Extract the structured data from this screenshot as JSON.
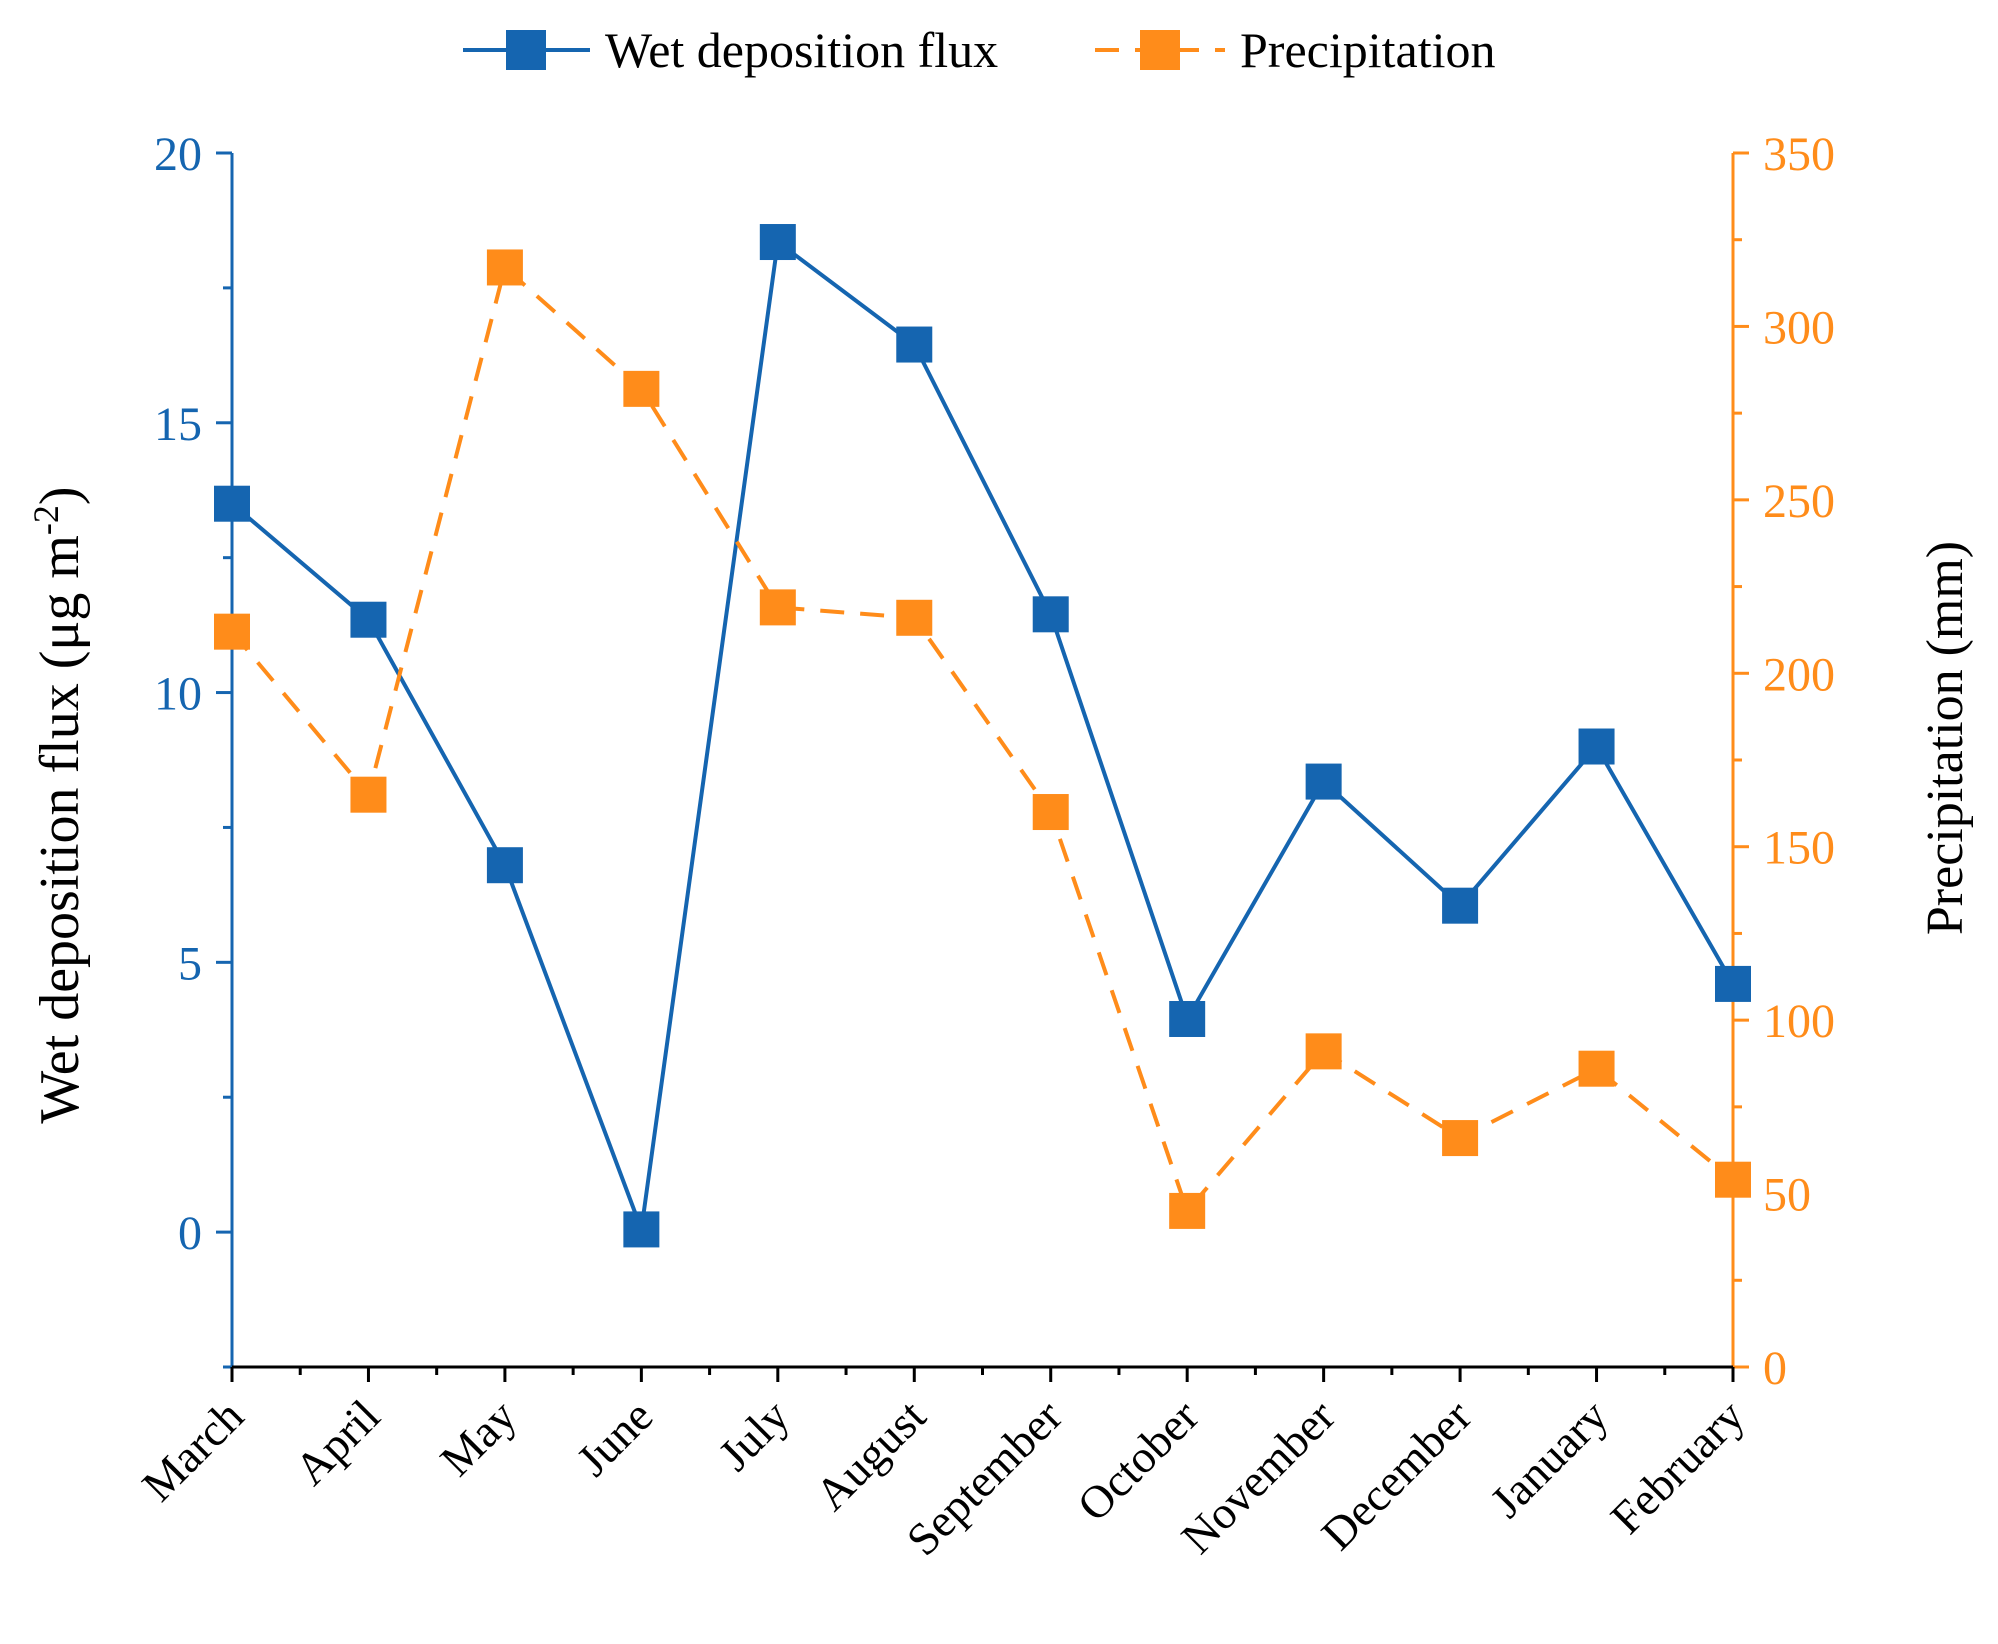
{
  "chart_data": {
    "type": "line",
    "categories": [
      "March",
      "April",
      "May",
      "June",
      "July",
      "August",
      "September",
      "October",
      "November",
      "December",
      "January",
      "February"
    ],
    "series": [
      {
        "name": "Wet deposition flux",
        "axis": "left",
        "color": "#1565b0",
        "line_style": "solid",
        "marker": "square",
        "values": [
          13.5,
          11.35,
          6.8,
          0.05,
          18.35,
          16.45,
          11.45,
          3.95,
          8.35,
          6.05,
          9.0,
          4.6
        ]
      },
      {
        "name": "Precipitation",
        "axis": "right",
        "color": "#ff8c1a",
        "line_style": "dashed",
        "marker": "square",
        "values": [
          212,
          165,
          317,
          282,
          219,
          216,
          160,
          45,
          91,
          66,
          86,
          54
        ]
      }
    ],
    "y_left": {
      "label_main": "Wet deposition flux (μg m",
      "label_sup": "-2",
      "label_close": ")",
      "range": [
        -2.5,
        20
      ],
      "major_ticks": [
        0,
        5,
        10,
        15,
        20
      ],
      "minor_ticks": [
        -2.5,
        2.5,
        7.5,
        12.5,
        17.5
      ],
      "color": "#1565b0"
    },
    "y_right": {
      "label": "Precipitation (mm)",
      "range": [
        0,
        350
      ],
      "major_ticks": [
        0,
        50,
        100,
        150,
        200,
        250,
        300,
        350
      ],
      "minor_ticks": [
        25,
        75,
        125,
        175,
        225,
        275,
        325
      ],
      "color": "#ff8c1a"
    },
    "legend_position": "top-center",
    "grid": false
  }
}
